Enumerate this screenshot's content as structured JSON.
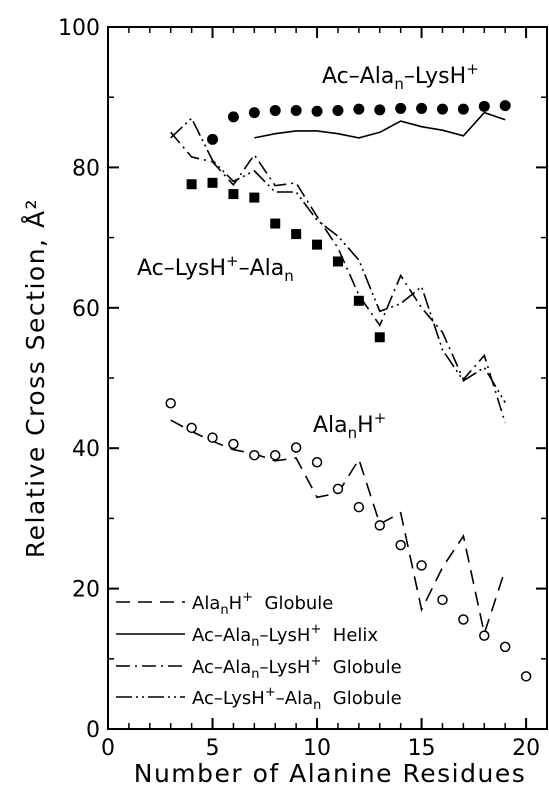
{
  "chart_data": {
    "type": "scatter",
    "xlabel": "Number of Alanine Residues",
    "ylabel": "Relative Cross Section, Å²",
    "xlim": [
      0,
      21
    ],
    "ylim": [
      0,
      100
    ],
    "xticks": [
      "0",
      "5",
      "10",
      "15",
      "20"
    ],
    "yticks": [
      "0",
      "20",
      "40",
      "60",
      "80",
      "100"
    ],
    "annotations": {
      "ac_ala_lys": "Ac–Ala",
      "ac_ala_lys_sub": "n",
      "ac_ala_lys_tail": "–LysH",
      "ac_lys_ala": "Ac–LysH",
      "ac_lys_ala_tail": "–Ala",
      "ac_lys_ala_sub": "n",
      "ala_base": "Ala",
      "ala_sub": "n",
      "ala_tail": "H",
      "plus": "+"
    },
    "legend": {
      "position": "bottom-left",
      "entries": [
        {
          "style": "dashed",
          "parts": [
            "Ala",
            "n",
            "H",
            "+",
            "  Globule"
          ]
        },
        {
          "style": "solid",
          "parts": [
            "Ac–Ala",
            "n",
            "–LysH",
            "+",
            "  Helix"
          ]
        },
        {
          "style": "dashdot",
          "parts": [
            "Ac–Ala",
            "n",
            "–LysH",
            "+",
            "  Globule"
          ]
        },
        {
          "style": "dashdotdot",
          "parts": [
            "Ac–LysH",
            "+",
            "–Ala",
            "n",
            "  Globule"
          ]
        }
      ]
    },
    "markers": {
      "filled_circles": {
        "x": [
          5,
          6,
          7,
          8,
          9,
          10,
          11,
          12,
          13,
          14,
          15,
          16,
          17,
          18,
          19
        ],
        "y": [
          84,
          87.2,
          87.8,
          88.1,
          88.1,
          88,
          88.1,
          88.3,
          88.2,
          88.4,
          88.4,
          88.3,
          88.3,
          88.7,
          88.8
        ]
      },
      "filled_squares": {
        "x": [
          4,
          5,
          6,
          7,
          8,
          9,
          10,
          11,
          12,
          13
        ],
        "y": [
          77.6,
          77.8,
          76.2,
          75.7,
          72,
          70.5,
          69,
          66.6,
          61,
          55.8
        ]
      },
      "open_circles": {
        "x": [
          3,
          4,
          5,
          6,
          7,
          8,
          9,
          10,
          11,
          12,
          13,
          14,
          15,
          16,
          17,
          18,
          19,
          20
        ],
        "y": [
          46.4,
          42.9,
          41.5,
          40.6,
          39,
          39,
          40.1,
          38,
          34.2,
          31.6,
          29,
          26.2,
          23.3,
          18.4,
          15.6,
          13.3,
          11.7,
          7.5
        ]
      }
    },
    "lines": {
      "helix_solid": {
        "x": [
          7,
          8,
          9,
          10,
          11,
          12,
          13,
          14,
          15,
          16,
          17,
          18,
          19
        ],
        "y": [
          84.2,
          84.8,
          85.2,
          85.2,
          84.8,
          84.2,
          85,
          86.6,
          85.8,
          85.3,
          84.5,
          87.8,
          86.8
        ]
      },
      "ala_globule_dashed": {
        "x": [
          3,
          4,
          5,
          6,
          7,
          8,
          9,
          10,
          11,
          12,
          13,
          14,
          15,
          16,
          17,
          18,
          19
        ],
        "y": [
          44,
          42.4,
          41,
          39.8,
          39.2,
          38.2,
          38.6,
          33,
          33.6,
          38.4,
          29.2,
          30.8,
          17,
          23,
          27.5,
          13.6,
          22.7
        ]
      },
      "ac_ala_lys_globule_dashdot": {
        "x": [
          3,
          4,
          5,
          6,
          7,
          8,
          9,
          10,
          11,
          12,
          13,
          14,
          15,
          16,
          17,
          18,
          19
        ],
        "y": [
          85,
          81.5,
          80.8,
          77.5,
          81.8,
          77.4,
          77.8,
          73,
          68.5,
          61.8,
          57.5,
          64.6,
          60,
          56.5,
          49.8,
          53.2,
          43.6
        ]
      },
      "ac_lys_ala_globule_dashdotdot": {
        "x": [
          3,
          4,
          5,
          6,
          7,
          8,
          9,
          10,
          11,
          12,
          13,
          14,
          15,
          16,
          17,
          18,
          19
        ],
        "y": [
          84.2,
          87,
          81,
          78,
          79.5,
          76.5,
          76.5,
          72.5,
          70.2,
          66.8,
          59.5,
          60.6,
          63,
          54,
          49.6,
          51.5,
          46.5
        ]
      }
    }
  }
}
